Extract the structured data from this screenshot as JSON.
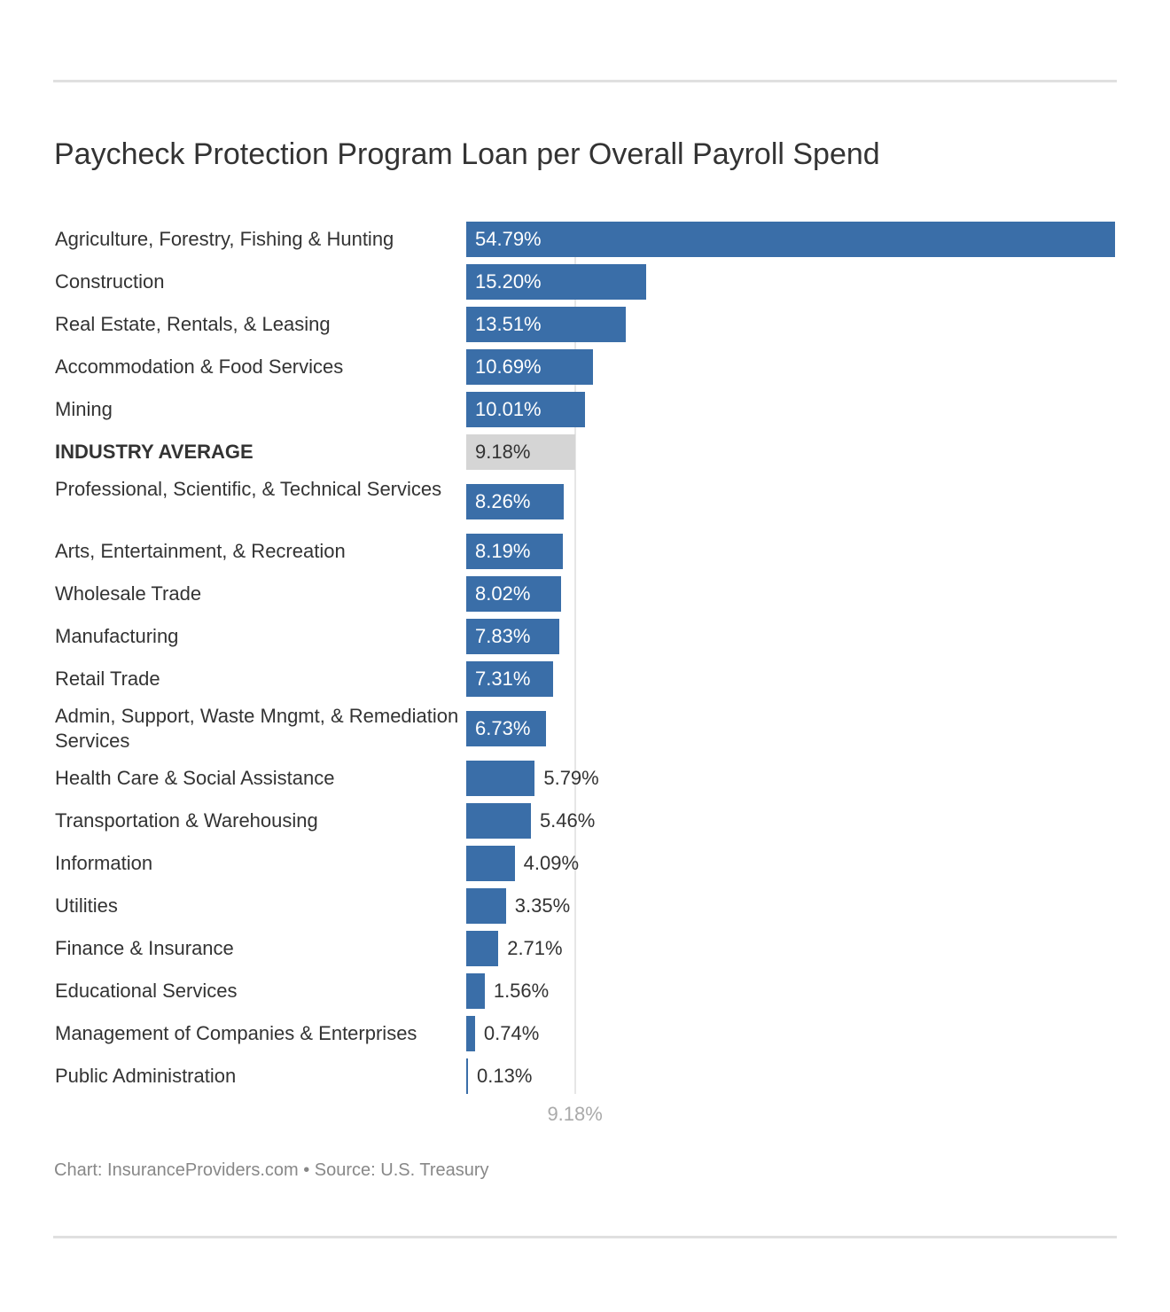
{
  "chart_data": {
    "type": "bar",
    "orientation": "horizontal",
    "title": "Paycheck Protection Program Loan per Overall Payroll Spend",
    "categories": [
      "Agriculture, Forestry, Fishing & Hunting",
      "Construction",
      "Real Estate, Rentals, & Leasing",
      "Accommodation & Food Services",
      "Mining",
      "INDUSTRY AVERAGE",
      "Professional, Scientific, & Technical Services",
      "Arts, Entertainment, & Recreation",
      "Wholesale Trade",
      "Manufacturing",
      "Retail Trade",
      "Admin, Support, Waste Mngmt, & Remediation Services",
      "Health Care & Social Assistance",
      "Transportation & Warehousing",
      "Information",
      "Utilities",
      "Finance & Insurance",
      "Educational Services",
      "Management of Companies & Enterprises",
      "Public Administration"
    ],
    "values": [
      54.79,
      15.2,
      13.51,
      10.69,
      10.01,
      9.18,
      8.26,
      8.19,
      8.02,
      7.83,
      7.31,
      6.73,
      5.79,
      5.46,
      4.09,
      3.35,
      2.71,
      1.56,
      0.74,
      0.13
    ],
    "value_labels": [
      "54.79%",
      "15.20%",
      "13.51%",
      "10.69%",
      "10.01%",
      "9.18%",
      "8.26%",
      "8.19%",
      "8.02%",
      "7.83%",
      "7.31%",
      "6.73%",
      "5.79%",
      "5.46%",
      "4.09%",
      "3.35%",
      "2.71%",
      "1.56%",
      "0.74%",
      "0.13%"
    ],
    "highlight_index": 5,
    "reference_line": {
      "value": 9.18,
      "label": "9.18%"
    },
    "xlim": [
      0,
      54.79
    ],
    "colors": {
      "bar": "#3a6ea8",
      "highlight": "#d5d5d5",
      "reference_line": "#e6e6e6"
    },
    "grid": false
  },
  "footer": "Chart: InsuranceProviders.com • Source: U.S. Treasury"
}
